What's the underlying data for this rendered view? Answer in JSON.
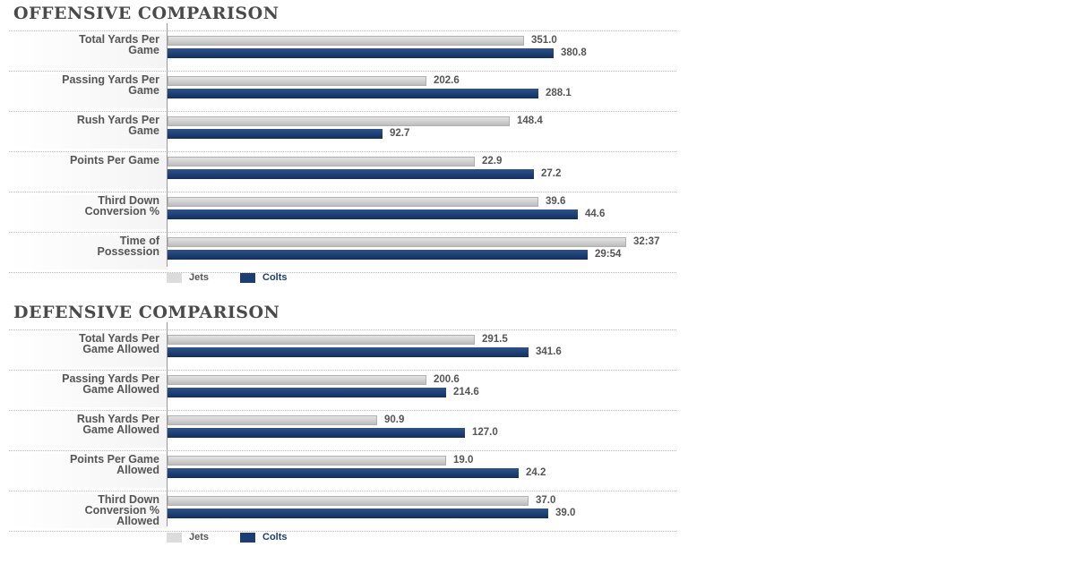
{
  "chart_data": [
    {
      "type": "bar",
      "title": "OFFENSIVE COMPARISON",
      "categories": [
        "Total Yards Per\nGame",
        "Passing Yards Per\nGame",
        "Rush Yards Per\nGame",
        "Points Per Game",
        "Third Down\nConversion %",
        "Time of\nPossession"
      ],
      "series": [
        {
          "name": "Jets",
          "values": [
            351.0,
            202.6,
            148.4,
            22.9,
            39.6,
            32.62
          ],
          "labels": [
            "351.0",
            "202.6",
            "148.4",
            "22.9",
            "39.6",
            "32:37"
          ]
        },
        {
          "name": "Colts",
          "values": [
            380.8,
            288.1,
            92.7,
            27.2,
            44.6,
            29.9
          ],
          "labels": [
            "380.8",
            "288.1",
            "92.7",
            "27.2",
            "44.6",
            "29:54"
          ]
        }
      ],
      "fractions": {
        "Jets": [
          0.73,
          0.53,
          0.7,
          0.63,
          0.76,
          0.94
        ],
        "Colts": [
          0.79,
          0.76,
          0.44,
          0.75,
          0.84,
          0.86
        ]
      },
      "legend": "bottom"
    },
    {
      "type": "bar",
      "title": "DEFENSIVE COMPARISON",
      "categories": [
        "Total Yards Per\nGame Allowed",
        "Passing Yards Per\nGame Allowed",
        "Rush Yards Per\nGame Allowed",
        "Points Per Game\nAllowed",
        "Third Down\nConversion %\nAllowed"
      ],
      "series": [
        {
          "name": "Jets",
          "values": [
            291.5,
            200.6,
            90.9,
            19.0,
            37.0
          ],
          "labels": [
            "291.5",
            "200.6",
            "90.9",
            "19.0",
            "37.0"
          ]
        },
        {
          "name": "Colts",
          "values": [
            341.6,
            214.6,
            127.0,
            24.2,
            39.0
          ],
          "labels": [
            "341.6",
            "214.6",
            "127.0",
            "24.2",
            "39.0"
          ]
        }
      ],
      "fractions": {
        "Jets": [
          0.63,
          0.53,
          0.43,
          0.57,
          0.74
        ],
        "Colts": [
          0.74,
          0.57,
          0.61,
          0.72,
          0.78
        ]
      },
      "legend": "bottom"
    }
  ],
  "colors": {
    "jets": "#dcdcdc",
    "colts": "#1c3e73"
  }
}
